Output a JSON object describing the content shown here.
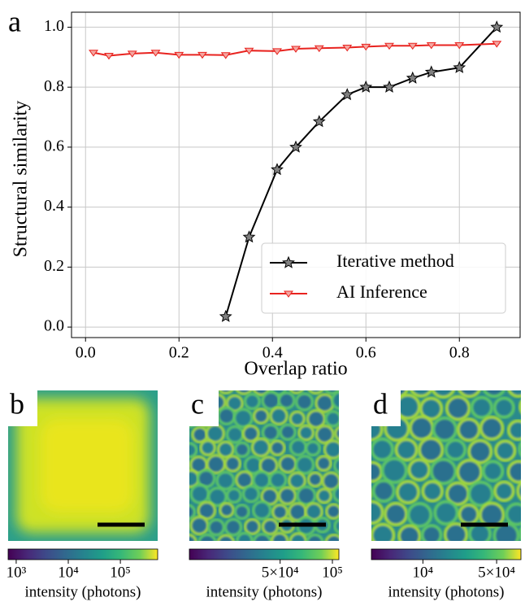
{
  "chart_data": {
    "type": "line",
    "panel_label": "a",
    "x_label": "Overlap ratio",
    "y_label": "Structural similarity",
    "xlim": [
      -0.03,
      0.93
    ],
    "ylim": [
      -0.035,
      1.05
    ],
    "xticks": [
      {
        "value": 0,
        "label": "0.0"
      },
      0.2,
      0.4,
      0.6,
      0.8
    ],
    "yticks": [
      {
        "value": 0,
        "label": "0.0"
      },
      0.2,
      0.4,
      0.6,
      0.8,
      {
        "value": 1,
        "label": "1.0"
      }
    ],
    "grid": true,
    "legend": "lower right",
    "series": [
      {
        "name": "Iterative method",
        "color": "#000000",
        "marker": "star",
        "marker_color": "#808080",
        "x": [
          0.3,
          0.35,
          0.41,
          0.45,
          0.5,
          0.56,
          0.6,
          0.65,
          0.7,
          0.74,
          0.8,
          0.88
        ],
        "values": [
          0.035,
          0.3,
          0.525,
          0.6,
          0.685,
          0.775,
          0.8,
          0.8,
          0.83,
          0.85,
          0.865,
          1.0
        ]
      },
      {
        "name": "AI Inference",
        "color": "#e8231f",
        "marker": "triangle-down",
        "marker_color": "#f4a6a0",
        "x": [
          0.017,
          0.05,
          0.1,
          0.15,
          0.2,
          0.25,
          0.3,
          0.35,
          0.41,
          0.45,
          0.5,
          0.56,
          0.6,
          0.65,
          0.7,
          0.74,
          0.8,
          0.88
        ],
        "values": [
          0.915,
          0.905,
          0.912,
          0.915,
          0.908,
          0.908,
          0.907,
          0.922,
          0.92,
          0.928,
          0.93,
          0.932,
          0.935,
          0.938,
          0.938,
          0.94,
          0.94,
          0.945
        ]
      }
    ]
  },
  "panels": [
    {
      "label": "b",
      "colorbar": {
        "scale": "log",
        "lim": [
          700,
          520000
        ],
        "ticks": [
          {
            "value": 1000,
            "label": "10³"
          },
          {
            "value": 10000,
            "label": "10⁴"
          },
          {
            "value": 100000,
            "label": "10⁵"
          }
        ],
        "label": "intensity (photons)"
      }
    },
    {
      "label": "c",
      "colorbar": {
        "scale": "log",
        "lim": [
          15000,
          109000
        ],
        "ticks": [
          {
            "value": 50000,
            "label": "5×10⁴"
          },
          {
            "value": 100000,
            "label": "10⁵"
          }
        ],
        "label": "intensity (photons)"
      }
    },
    {
      "label": "d",
      "colorbar": {
        "scale": "log",
        "lim": [
          3250,
          85000
        ],
        "ticks": [
          {
            "value": 10000,
            "label": "10⁴"
          },
          {
            "value": 50000,
            "label": "5×10⁴"
          }
        ],
        "label": "intensity (photons)"
      }
    }
  ]
}
